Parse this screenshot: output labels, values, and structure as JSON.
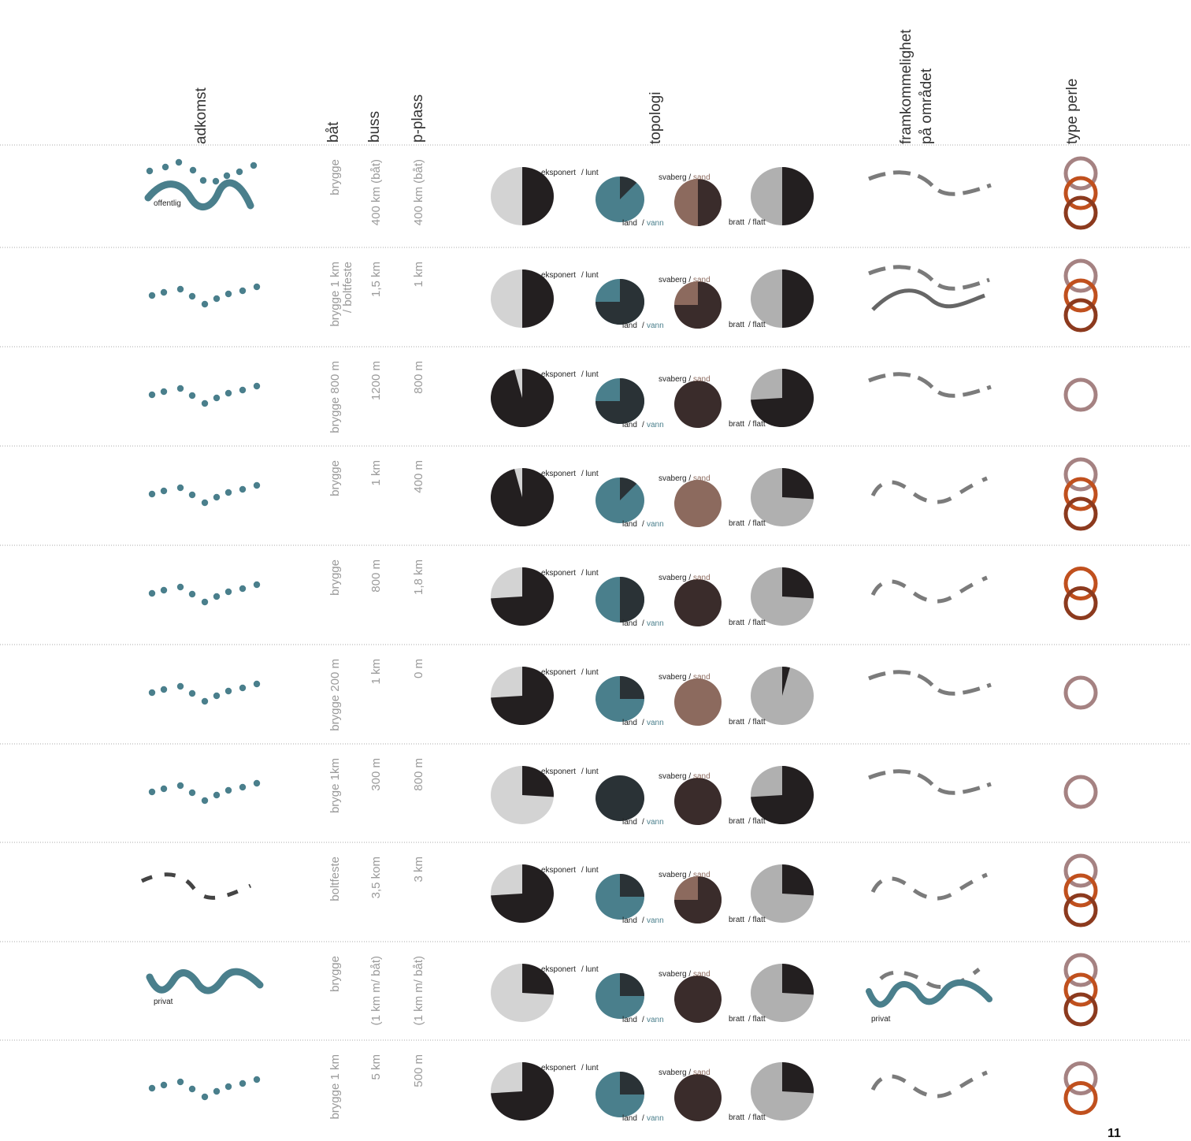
{
  "headers": {
    "adkomst": "adkomst",
    "bat": "båt",
    "buss": "buss",
    "pplass": "p-plass",
    "topologi": "topologi",
    "framkommelighet_1": "framkommelighet",
    "framkommelighet_2": "på området",
    "type_perle": "type perle"
  },
  "labels": {
    "eksponert": "eksponert",
    "lunt": "/ lunt",
    "land": "land",
    "vann": "vann",
    "svaberg": "svaberg",
    "sand": "sand",
    "bratt": "bratt",
    "flatt": "/ flatt",
    "offentlig": "offentlig",
    "privat": "privat"
  },
  "colors": {
    "dark": "#231f20",
    "light_gray": "#d3d3d3",
    "mid_gray": "#b0b0b0",
    "teal": "#4a7f8c",
    "slate": "#2a3236",
    "brown_dark": "#3a2c2b",
    "brown_light": "#8c6a5e",
    "path_gray": "#7b7b7b",
    "ring_mauve": "#a58282",
    "ring_orange": "#c0501e",
    "ring_rust": "#8c3a1e",
    "grid_line": "#aaaaaa",
    "text_gray": "#9a9a9a",
    "sand_text": "#8c6a5e",
    "vann_text": "#4a7f8c"
  },
  "rows": [
    {
      "adkomst": "wave-public",
      "bat": [
        "brygge"
      ],
      "buss": [
        "400 km (båt)"
      ],
      "pplass": [
        "400 km (båt)"
      ],
      "eksponert_lunt": 0.5,
      "land_vann": 0.12,
      "svaberg_sand": 0.5,
      "bratt_flatt": 0.5,
      "framkommelighet": "dashed-curve",
      "perle": [
        "mauve",
        "orange",
        "rust"
      ]
    },
    {
      "adkomst": "dots",
      "bat": [
        "brygge 1 km",
        "/ boltfeste"
      ],
      "buss": [
        "1,5 km"
      ],
      "pplass": [
        "1 km"
      ],
      "eksponert_lunt": 0.5,
      "land_vann": 0.75,
      "svaberg_sand": 0.75,
      "bratt_flatt": 0.5,
      "framkommelighet": "dashed-and-solid",
      "perle": [
        "mauve",
        "orange",
        "rust"
      ]
    },
    {
      "adkomst": "dots",
      "bat": [
        "brygge 800 m"
      ],
      "buss": [
        "1200 m"
      ],
      "pplass": [
        "800 m"
      ],
      "eksponert_lunt": 0.96,
      "land_vann": 0.75,
      "svaberg_sand": 1.0,
      "bratt_flatt": 0.74,
      "framkommelighet": "dashed-curve",
      "perle": [
        "mauve"
      ]
    },
    {
      "adkomst": "dots",
      "bat": [
        "brygge"
      ],
      "buss": [
        "1 km"
      ],
      "pplass": [
        "400 m"
      ],
      "eksponert_lunt": 0.96,
      "land_vann": 0.12,
      "svaberg_sand": 0.0,
      "bratt_flatt": 0.26,
      "framkommelighet": "dashed-wiggle",
      "perle": [
        "mauve",
        "orange",
        "rust"
      ]
    },
    {
      "adkomst": "dots",
      "bat": [
        "brygge"
      ],
      "buss": [
        "800 m"
      ],
      "pplass": [
        "1,8 km"
      ],
      "eksponert_lunt": 0.74,
      "land_vann": 0.5,
      "svaberg_sand": 1.0,
      "bratt_flatt": 0.26,
      "framkommelighet": "dashed-wiggle",
      "perle": [
        "orange",
        "rust"
      ]
    },
    {
      "adkomst": "dots",
      "bat": [
        "brygge 200 m"
      ],
      "buss": [
        "1 km"
      ],
      "pplass": [
        "0 m"
      ],
      "eksponert_lunt": 0.74,
      "land_vann": 0.25,
      "svaberg_sand": 0.0,
      "bratt_flatt": 0.04,
      "framkommelighet": "dashed-curve",
      "perle": [
        "mauve"
      ]
    },
    {
      "adkomst": "dots",
      "bat": [
        "bryge 1km"
      ],
      "buss": [
        "300 m"
      ],
      "pplass": [
        "800 m"
      ],
      "eksponert_lunt": 0.26,
      "land_vann": 1.0,
      "svaberg_sand": 1.0,
      "bratt_flatt": 0.74,
      "framkommelighet": "dashed-curve",
      "perle": [
        "mauve"
      ]
    },
    {
      "adkomst": "dashed",
      "bat": [
        "boltfeste"
      ],
      "buss": [
        "3,5 kom"
      ],
      "pplass": [
        "3 km"
      ],
      "eksponert_lunt": 0.74,
      "land_vann": 0.25,
      "svaberg_sand": 0.75,
      "bratt_flatt": 0.26,
      "framkommelighet": "dashed-wiggle",
      "perle": [
        "mauve",
        "orange",
        "rust"
      ]
    },
    {
      "adkomst": "wave-private",
      "bat": [
        "brygge"
      ],
      "buss": [
        "(1 km m/ båt)"
      ],
      "pplass": [
        "(1 km m/ båt)"
      ],
      "eksponert_lunt": 0.26,
      "land_vann": 0.25,
      "svaberg_sand": 1.0,
      "bratt_flatt": 0.26,
      "framkommelighet": "dashed-private",
      "perle": [
        "mauve",
        "orange",
        "rust"
      ]
    },
    {
      "adkomst": "dots",
      "bat": [
        "brygge 1 km"
      ],
      "buss": [
        "5 km"
      ],
      "pplass": [
        "500  m"
      ],
      "eksponert_lunt": 0.74,
      "land_vann": 0.25,
      "svaberg_sand": 1.0,
      "bratt_flatt": 0.26,
      "framkommelighet": "dashed-wiggle",
      "perle": [
        "mauve",
        "orange"
      ]
    }
  ],
  "page_number": "11"
}
